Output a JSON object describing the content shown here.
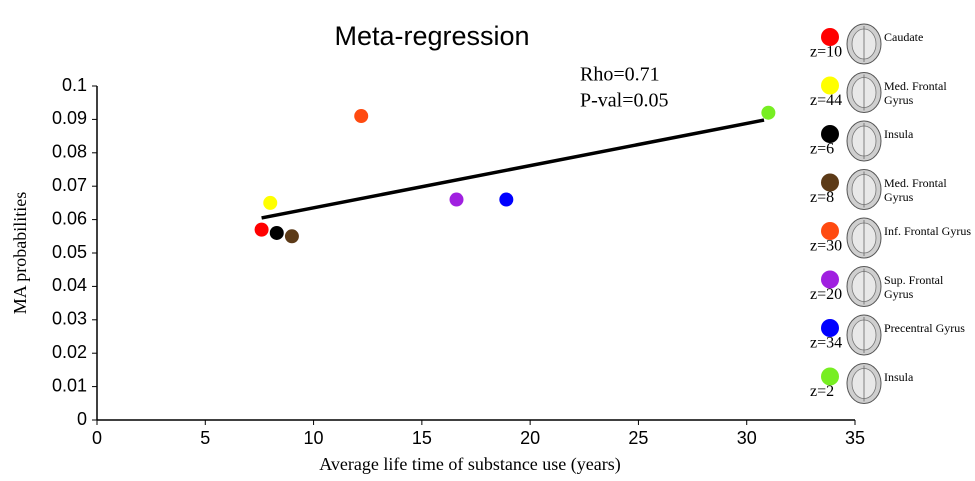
{
  "chart_data": {
    "type": "scatter",
    "title": "Meta-regression",
    "x_label": "Average life time of substance use (years)",
    "y_label": "MA probabilities",
    "annotations": [
      "Rho=0.71",
      "P-val=0.05"
    ],
    "xlim": [
      0,
      35
    ],
    "xticks": [
      0,
      5,
      10,
      15,
      20,
      25,
      30,
      35
    ],
    "ylim": [
      0,
      0.1
    ],
    "yticks": [
      0,
      0.01,
      0.02,
      0.03,
      0.04,
      0.05,
      0.06,
      0.07,
      0.08,
      0.09,
      0.1
    ],
    "series": [
      {
        "name": "Caudate",
        "z": "z=10",
        "color": "#ff0000",
        "x": [
          7.6
        ],
        "values": [
          0.057
        ]
      },
      {
        "name": "Med. Frontal Gyrus",
        "z": "z=44",
        "color": "#ffff00",
        "x": [
          8.0
        ],
        "values": [
          0.065
        ]
      },
      {
        "name": "Insula",
        "z": "z=6",
        "color": "#000000",
        "x": [
          8.3
        ],
        "values": [
          0.056
        ]
      },
      {
        "name": "Med. Frontal Gyrus",
        "z": "z=8",
        "color": "#5c3a17",
        "x": [
          9.0
        ],
        "values": [
          0.055
        ]
      },
      {
        "name": "Inf. Frontal Gyrus",
        "z": "z=30",
        "color": "#ff4a10",
        "x": [
          12.2
        ],
        "values": [
          0.091
        ]
      },
      {
        "name": "Sup. Frontal Gyrus",
        "z": "z=20",
        "color": "#a020e0",
        "x": [
          16.6
        ],
        "values": [
          0.066
        ]
      },
      {
        "name": "Precentral Gyrus",
        "z": "z=34",
        "color": "#0000ff",
        "x": [
          18.9
        ],
        "values": [
          0.066
        ]
      },
      {
        "name": "Insula",
        "z": "z=2",
        "color": "#77ee22",
        "x": [
          31.0
        ],
        "values": [
          0.092
        ]
      }
    ],
    "trend": {
      "color": "#000000",
      "x": [
        7.6,
        30.8
      ],
      "values": [
        0.0605,
        0.0898
      ]
    }
  }
}
